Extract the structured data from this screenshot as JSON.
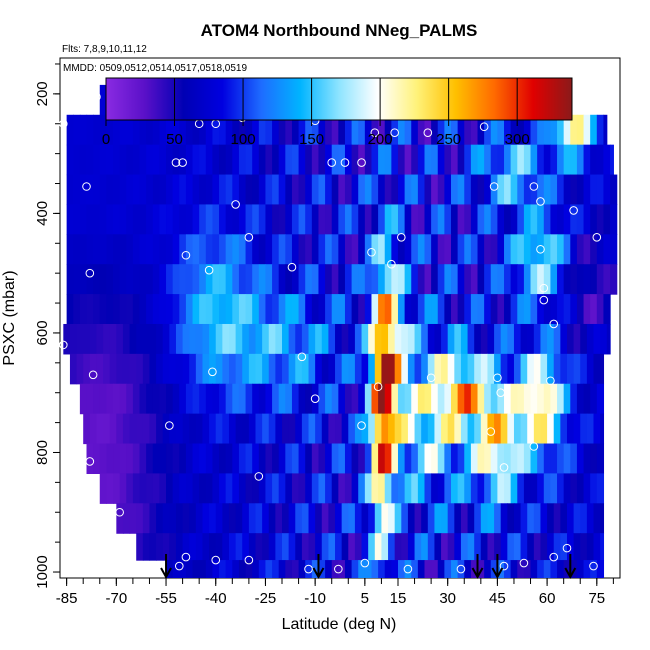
{
  "chart_data": {
    "type": "heatmap",
    "title": "ATOM4 Northbound NNeg_PALMS",
    "subtitle_flights": "Flts: 7,8,9,10,11,12",
    "subtitle_dates": "MMDD: 0509,0512,0514,0517,0518,0519",
    "xlabel": "Latitude (deg N)",
    "ylabel": "PSXC (mbar)",
    "xlim": [
      -87,
      82
    ],
    "ylim": [
      1010,
      140
    ],
    "x_ticks": [
      -85,
      -70,
      -55,
      -40,
      -25,
      -10,
      5,
      15,
      30,
      45,
      60,
      75
    ],
    "y_ticks": [
      200,
      400,
      600,
      800,
      1000
    ],
    "colorbar": {
      "min": 0,
      "max": 340,
      "ticks": [
        0,
        50,
        100,
        150,
        200,
        250,
        300
      ],
      "colors": [
        "#8a2be2",
        "#5a10c8",
        "#0000b4",
        "#0000e0",
        "#1e6cff",
        "#00b4ff",
        "#8ee4ff",
        "#ffffff",
        "#fff27a",
        "#ffc000",
        "#ff6a00",
        "#e00000",
        "#8b1a1a"
      ]
    },
    "pressure_levels": [
      210,
      260,
      310,
      360,
      410,
      460,
      510,
      560,
      610,
      660,
      710,
      760,
      810,
      860,
      910,
      960,
      1000
    ],
    "level_start_lat": [
      -75,
      -85,
      -85,
      -85,
      -85,
      -85,
      -85,
      -85,
      -86,
      -84,
      -81,
      -80,
      -79,
      -75,
      -70,
      -64,
      -55
    ],
    "level_end_lat": [
      55,
      78,
      80,
      81,
      81,
      81,
      81,
      79,
      79,
      77,
      77,
      77,
      77,
      77,
      77,
      77,
      77
    ],
    "markers": [
      {
        "lat": -88,
        "p": 215
      },
      {
        "lat": -76,
        "p": 205
      },
      {
        "lat": -29,
        "p": 210
      },
      {
        "lat": 42,
        "p": 205
      },
      {
        "lat": 60,
        "p": 215
      },
      {
        "lat": -86,
        "p": 250
      },
      {
        "lat": -45,
        "p": 250
      },
      {
        "lat": -40,
        "p": 250
      },
      {
        "lat": -32,
        "p": 240
      },
      {
        "lat": -10,
        "p": 245
      },
      {
        "lat": 8,
        "p": 265
      },
      {
        "lat": 14,
        "p": 265
      },
      {
        "lat": 24,
        "p": 265
      },
      {
        "lat": 41,
        "p": 255
      },
      {
        "lat": -52,
        "p": 315
      },
      {
        "lat": -50,
        "p": 315
      },
      {
        "lat": -5,
        "p": 315
      },
      {
        "lat": -1,
        "p": 315
      },
      {
        "lat": 4,
        "p": 315
      },
      {
        "lat": -79,
        "p": 355
      },
      {
        "lat": 44,
        "p": 355
      },
      {
        "lat": 56,
        "p": 355
      },
      {
        "lat": -34,
        "p": 385
      },
      {
        "lat": 58,
        "p": 380
      },
      {
        "lat": 68,
        "p": 395
      },
      {
        "lat": -30,
        "p": 440
      },
      {
        "lat": 16,
        "p": 440
      },
      {
        "lat": 75,
        "p": 440
      },
      {
        "lat": -49,
        "p": 470
      },
      {
        "lat": 7,
        "p": 465
      },
      {
        "lat": 58,
        "p": 460
      },
      {
        "lat": -78,
        "p": 500
      },
      {
        "lat": -42,
        "p": 495
      },
      {
        "lat": -17,
        "p": 490
      },
      {
        "lat": 13,
        "p": 485
      },
      {
        "lat": 59,
        "p": 525
      },
      {
        "lat": -86,
        "p": 620
      },
      {
        "lat": -14,
        "p": 640
      },
      {
        "lat": 59,
        "p": 545
      },
      {
        "lat": 62,
        "p": 585
      },
      {
        "lat": -77,
        "p": 670
      },
      {
        "lat": -41,
        "p": 665
      },
      {
        "lat": 9,
        "p": 690
      },
      {
        "lat": 25,
        "p": 675
      },
      {
        "lat": 45,
        "p": 675
      },
      {
        "lat": 46,
        "p": 700
      },
      {
        "lat": 61,
        "p": 680
      },
      {
        "lat": -10,
        "p": 710
      },
      {
        "lat": -54,
        "p": 755
      },
      {
        "lat": 4,
        "p": 755
      },
      {
        "lat": 43,
        "p": 765
      },
      {
        "lat": -78,
        "p": 815
      },
      {
        "lat": -27,
        "p": 840
      },
      {
        "lat": 47,
        "p": 825
      },
      {
        "lat": 56,
        "p": 790
      },
      {
        "lat": -69,
        "p": 900
      },
      {
        "lat": -68,
        "p": 950
      },
      {
        "lat": -51,
        "p": 990
      },
      {
        "lat": -49,
        "p": 975
      },
      {
        "lat": -40,
        "p": 980
      },
      {
        "lat": -30,
        "p": 980
      },
      {
        "lat": -12,
        "p": 995
      },
      {
        "lat": -3,
        "p": 995
      },
      {
        "lat": 5,
        "p": 985
      },
      {
        "lat": 18,
        "p": 995
      },
      {
        "lat": 34,
        "p": 995
      },
      {
        "lat": 47,
        "p": 990
      },
      {
        "lat": 53,
        "p": 985
      },
      {
        "lat": 62,
        "p": 975
      },
      {
        "lat": 66,
        "p": 960
      },
      {
        "lat": 74,
        "p": 990
      }
    ],
    "arrows_lat": [
      -55,
      -9,
      39,
      45,
      67
    ],
    "legend": "top"
  }
}
